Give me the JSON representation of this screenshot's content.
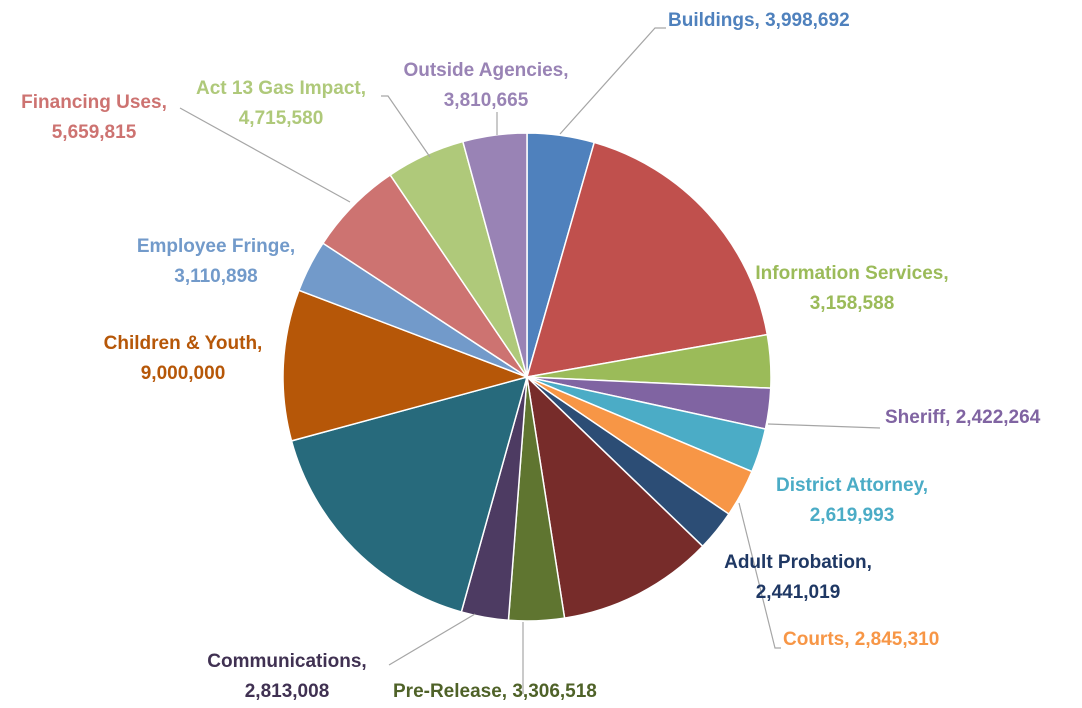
{
  "chart_data": {
    "type": "pie",
    "title": "",
    "slices": [
      {
        "name": "Buildings",
        "value": 3998692,
        "label": "Buildings,  3,998,692",
        "color": "#4F81BD",
        "text_color": "#4F81BD"
      },
      {
        "name": "",
        "value": 16000000,
        "label": "",
        "color": "#C0504D",
        "text_color": "#C0504D"
      },
      {
        "name": "Information Services",
        "value": 3158588,
        "label": "Information Services,|3,158,588",
        "color": "#9BBB59",
        "text_color": "#9BBB59"
      },
      {
        "name": "Sheriff",
        "value": 2422264,
        "label": "Sheriff,  2,422,264",
        "color": "#8064A2",
        "text_color": "#8064A2"
      },
      {
        "name": "District Attorney",
        "value": 2619993,
        "label": "District Attorney,|2,619,993",
        "color": "#4BACC6",
        "text_color": "#4BACC6"
      },
      {
        "name": "Courts",
        "value": 2845310,
        "label": "Courts,  2,845,310",
        "color": "#F79646",
        "text_color": "#F79646"
      },
      {
        "name": "Adult Probation",
        "value": 2441019,
        "label": "Adult Probation,|2,441,019",
        "color": "#2C4D75",
        "text_color": "#1F3864"
      },
      {
        "name": "",
        "value": 9300000,
        "label": "",
        "color": "#772C2A",
        "text_color": "#772C2A"
      },
      {
        "name": "Pre-Release",
        "value": 3306518,
        "label": "Pre-Release,  3,306,518",
        "color": "#5F7530",
        "text_color": "#4F6228"
      },
      {
        "name": "Communications",
        "value": 2813008,
        "label": "Communications,|2,813,008",
        "color": "#4D3B62",
        "text_color": "#403152"
      },
      {
        "name": "",
        "value": 14800000,
        "label": "",
        "color": "#276A7C",
        "text_color": "#276A7C"
      },
      {
        "name": "Children & Youth",
        "value": 9000000,
        "label": "Children & Youth,|9,000,000",
        "color": "#B65708",
        "text_color": "#B65708"
      },
      {
        "name": "Employee Fringe",
        "value": 3110898,
        "label": "Employee Fringe,|3,110,898",
        "color": "#729ACA",
        "text_color": "#729ACA"
      },
      {
        "name": "Financing Uses",
        "value": 5659815,
        "label": "Financing Uses,|5,659,815",
        "color": "#CD7371",
        "text_color": "#CD7371"
      },
      {
        "name": "Act 13 Gas Impact",
        "value": 4715580,
        "label": "Act 13 Gas Impact,|4,715,580",
        "color": "#AFC97A",
        "text_color": "#AFC97A"
      },
      {
        "name": "Outside Agencies",
        "value": 3810665,
        "label": "Outside Agencies,|3,810,665",
        "color": "#9983B5",
        "text_color": "#9983B5"
      }
    ]
  }
}
